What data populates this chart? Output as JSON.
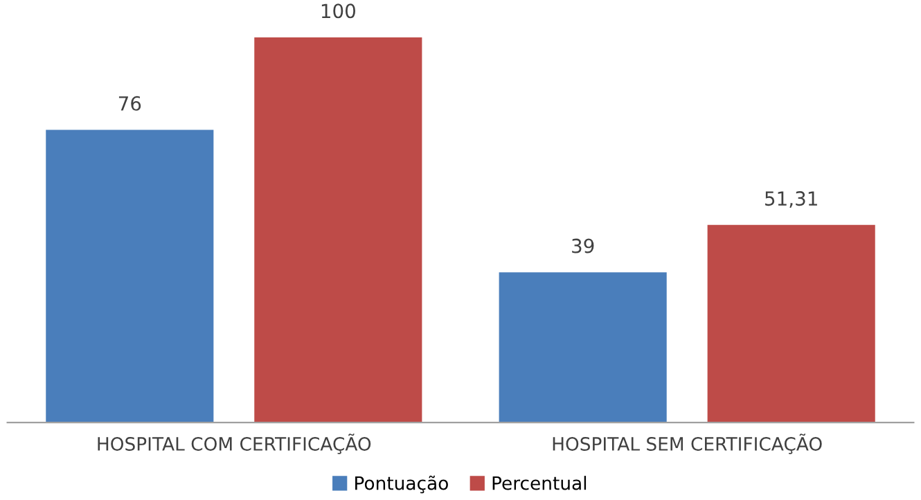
{
  "chart_data": {
    "type": "bar",
    "categories": [
      "HOSPITAL COM CERTIFICAÇÃO",
      "HOSPITAL SEM CERTIFICAÇÃO"
    ],
    "series": [
      {
        "name": "Pontuação",
        "color": "#4a7ebb",
        "values": [
          76,
          39
        ],
        "value_labels": [
          "76",
          "39"
        ]
      },
      {
        "name": "Percentual",
        "color": "#be4b48",
        "values": [
          100,
          51.31
        ],
        "value_labels": [
          "100",
          "51,31"
        ]
      }
    ],
    "legend": "bottom",
    "grid": false
  }
}
